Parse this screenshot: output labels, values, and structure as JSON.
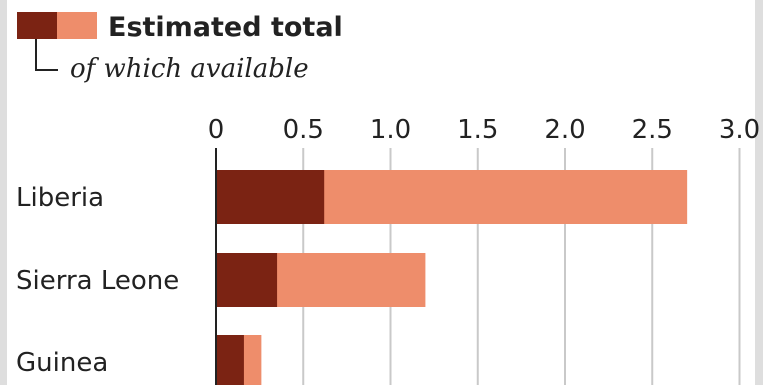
{
  "chart_data": {
    "type": "bar",
    "orientation": "horizontal",
    "stacked": false,
    "categories": [
      "Liberia",
      "Sierra Leone",
      "Guinea"
    ],
    "series": [
      {
        "name": "Estimated total",
        "values": [
          2.7,
          1.2,
          0.26
        ],
        "color": "#ee8d6b"
      },
      {
        "name": "of which available",
        "values": [
          0.62,
          0.35,
          0.16
        ],
        "color": "#7b2313"
      }
    ],
    "xticks": [
      "0",
      "0.5",
      "1.0",
      "1.5",
      "2.0",
      "2.5",
      "3.0"
    ],
    "xlim": [
      0,
      3.0
    ],
    "grid": true,
    "legend_position": "top-left"
  },
  "legend": {
    "total_label": "Estimated total",
    "available_label": "of which available"
  }
}
